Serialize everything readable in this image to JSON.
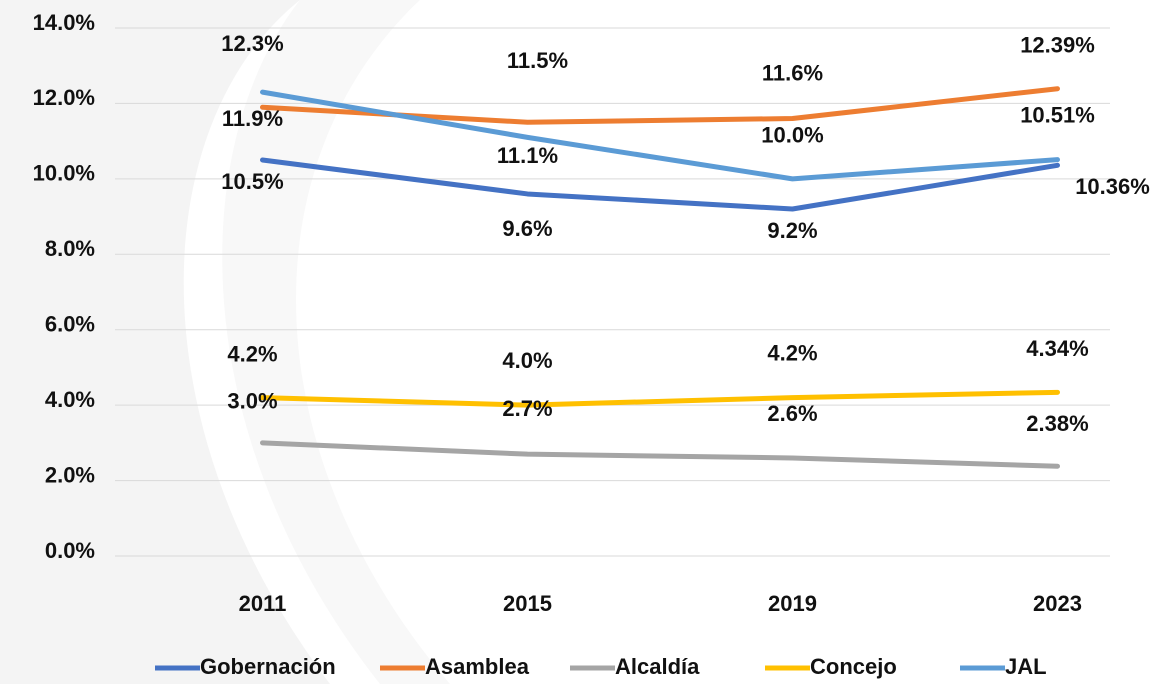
{
  "chart_data": {
    "type": "line",
    "categories": [
      "2011",
      "2015",
      "2019",
      "2023"
    ],
    "series": [
      {
        "name": "Gobernación",
        "color": "#4472c4",
        "values": [
          10.5,
          9.6,
          9.2,
          10.36
        ],
        "value_labels": [
          "10.5%",
          "9.6%",
          "9.2%",
          "10.36%"
        ]
      },
      {
        "name": "Asamblea",
        "color": "#ed7d31",
        "values": [
          11.9,
          11.5,
          11.6,
          12.39
        ],
        "value_labels": [
          "11.9%",
          "11.5%",
          "11.6%",
          "12.39%"
        ]
      },
      {
        "name": "Alcaldía",
        "color": "#a5a5a5",
        "values": [
          3.0,
          2.7,
          2.6,
          2.38
        ],
        "value_labels": [
          "3.0%",
          "2.7%",
          "2.6%",
          "2.38%"
        ]
      },
      {
        "name": "Concejo",
        "color": "#ffc000",
        "values": [
          4.2,
          4.0,
          4.2,
          4.34
        ],
        "value_labels": [
          "4.2%",
          "4.0%",
          "4.2%",
          "4.34%"
        ]
      },
      {
        "name": "JAL",
        "color": "#5b9bd5",
        "values": [
          12.3,
          11.1,
          10.0,
          10.51
        ],
        "value_labels": [
          "12.3%",
          "11.1%",
          "10.0%",
          "10.51%"
        ]
      }
    ],
    "ylim": [
      0,
      14
    ],
    "yticks": [
      {
        "value": 0,
        "label": "0.0%"
      },
      {
        "value": 2,
        "label": "2.0%"
      },
      {
        "value": 4,
        "label": "4.0%"
      },
      {
        "value": 6,
        "label": "6.0%"
      },
      {
        "value": 8,
        "label": "8.0%"
      },
      {
        "value": 10,
        "label": "10.0%"
      },
      {
        "value": 12,
        "label": "12.0%"
      },
      {
        "value": 14,
        "label": "14.0%"
      }
    ],
    "grid": true,
    "legend": "bottom"
  }
}
